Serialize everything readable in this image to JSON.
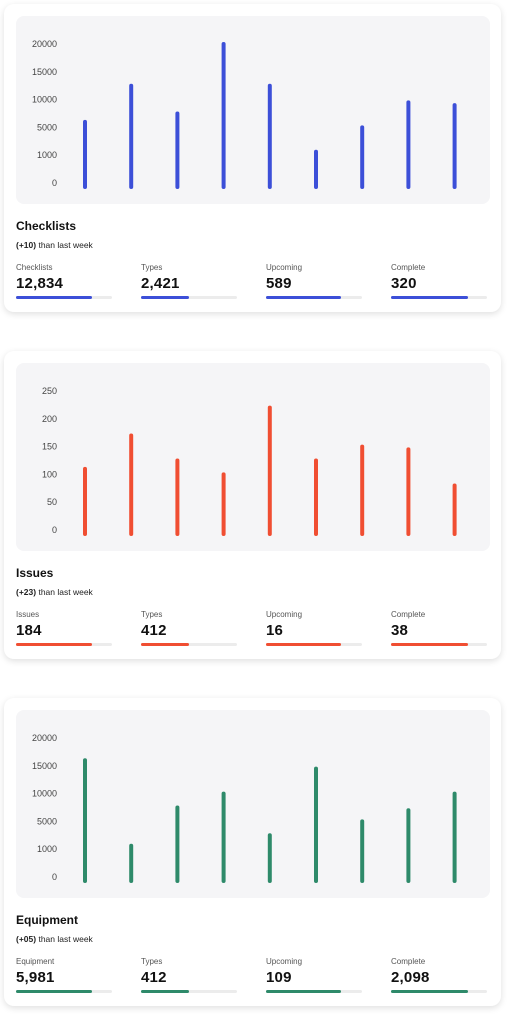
{
  "cards": [
    {
      "title": "Checklists",
      "delta": "(+10)",
      "delta_suffix": "than last week",
      "color": "#3c4fd8",
      "stats": [
        {
          "label": "Checklists",
          "value": "12,834",
          "progress": 0.79
        },
        {
          "label": "Types",
          "value": "2,421",
          "progress": 0.5
        },
        {
          "label": "Upcoming",
          "value": "589",
          "progress": 0.78
        },
        {
          "label": "Complete",
          "value": "320",
          "progress": 0.8
        }
      ]
    },
    {
      "title": "Issues",
      "delta": "(+23)",
      "delta_suffix": "than last week",
      "color": "#f04e32",
      "stats": [
        {
          "label": "Issues",
          "value": "184",
          "progress": 0.79
        },
        {
          "label": "Types",
          "value": "412",
          "progress": 0.5
        },
        {
          "label": "Upcoming",
          "value": "16",
          "progress": 0.78
        },
        {
          "label": "Complete",
          "value": "38",
          "progress": 0.8
        }
      ]
    },
    {
      "title": "Equipment",
      "delta": "(+05)",
      "delta_suffix": "than last week",
      "color": "#2e8a6a",
      "stats": [
        {
          "label": "Equipment",
          "value": "5,981",
          "progress": 0.79
        },
        {
          "label": "Types",
          "value": "412",
          "progress": 0.5
        },
        {
          "label": "Upcoming",
          "value": "109",
          "progress": 0.78
        },
        {
          "label": "Complete",
          "value": "2,098",
          "progress": 0.8
        }
      ]
    }
  ],
  "chart_data": [
    {
      "type": "bar",
      "title": "",
      "xlabel": "",
      "ylabel": "",
      "yticks": [
        "20000",
        "15000",
        "10000",
        "5000",
        "1000",
        "0"
      ],
      "values": [
        6000,
        12500,
        7500,
        20000,
        12500,
        1500,
        5000,
        9500,
        9000
      ],
      "grid": false
    },
    {
      "type": "bar",
      "title": "",
      "xlabel": "",
      "ylabel": "",
      "yticks": [
        "250",
        "200",
        "150",
        "100",
        "50",
        "0"
      ],
      "values": [
        110,
        170,
        125,
        100,
        220,
        125,
        150,
        145,
        80
      ],
      "grid": false
    },
    {
      "type": "bar",
      "title": "",
      "xlabel": "",
      "ylabel": "",
      "yticks": [
        "20000",
        "15000",
        "10000",
        "5000",
        "1000",
        "0"
      ],
      "values": [
        16000,
        1500,
        7500,
        10000,
        3000,
        14500,
        5000,
        7000,
        10000
      ],
      "grid": false
    }
  ]
}
